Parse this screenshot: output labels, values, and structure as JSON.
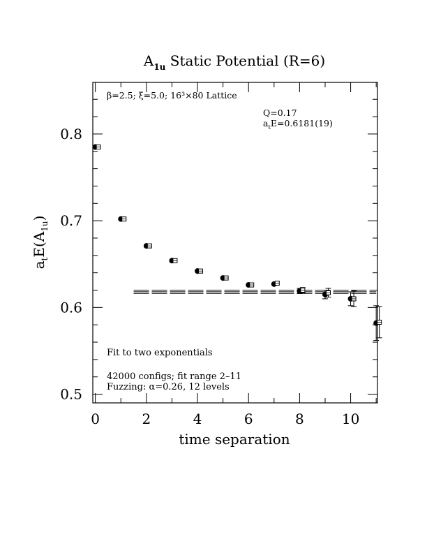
{
  "chart_data": {
    "type": "scatter",
    "title_main": "A",
    "title_sub": "1u",
    "title_rest": " Static Potential (R=6)",
    "xlabel": "time separation",
    "ylabel_main": "a",
    "ylabel_sub1": "t",
    "ylabel_mid": "E(A",
    "ylabel_sub2": "1u",
    "ylabel_end": ")",
    "xlim": [
      -0.1,
      11.05
    ],
    "ylim": [
      0.49,
      0.8595
    ],
    "x_ticks": [
      0,
      2,
      4,
      6,
      8,
      10
    ],
    "x_tick_labels": [
      "0",
      "2",
      "4",
      "6",
      "8",
      "10"
    ],
    "y_ticks": [
      0.5,
      0.6,
      0.7,
      0.8
    ],
    "y_tick_labels": [
      "0.5",
      "0.6",
      "0.7",
      "0.8"
    ],
    "series": [
      {
        "marker": "filled-circle",
        "points": [
          {
            "x": 0,
            "y": 0.785
          },
          {
            "x": 1,
            "y": 0.702
          },
          {
            "x": 2,
            "y": 0.671
          },
          {
            "x": 3,
            "y": 0.654
          },
          {
            "x": 4,
            "y": 0.642
          },
          {
            "x": 5,
            "y": 0.634
          },
          {
            "x": 6,
            "y": 0.626
          },
          {
            "x": 7,
            "y": 0.627
          },
          {
            "x": 8,
            "y": 0.619,
            "err": 0.003
          },
          {
            "x": 9,
            "y": 0.615,
            "err": 0.005
          },
          {
            "x": 10,
            "y": 0.61,
            "err": 0.008
          },
          {
            "x": 11,
            "y": 0.582,
            "err": 0.02
          }
        ]
      },
      {
        "marker": "open-square",
        "points": [
          {
            "x": 0,
            "y": 0.785
          },
          {
            "x": 1,
            "y": 0.702
          },
          {
            "x": 2,
            "y": 0.671
          },
          {
            "x": 3,
            "y": 0.654
          },
          {
            "x": 4,
            "y": 0.642
          },
          {
            "x": 5,
            "y": 0.634
          },
          {
            "x": 6,
            "y": 0.626
          },
          {
            "x": 7,
            "y": 0.628
          },
          {
            "x": 8,
            "y": 0.62,
            "err": 0.003
          },
          {
            "x": 9,
            "y": 0.617,
            "err": 0.005
          },
          {
            "x": 10,
            "y": 0.61,
            "err": 0.009
          },
          {
            "x": 11,
            "y": 0.583,
            "err": 0.018
          }
        ]
      }
    ],
    "fit": {
      "value": 0.6181,
      "error": 0.0019,
      "x_range": [
        1.5,
        11
      ]
    },
    "annotations": {
      "lattice": "β=2.5; ξ=5.0; 16³×80 Lattice",
      "q_value": "Q=0.17",
      "energy_main": "a",
      "energy_sub": "t",
      "energy_rest": "E=0.6181(19)",
      "fit_desc": "Fit to two exponentials",
      "configs": "42000 configs; fit range 2–11",
      "fuzzing": "Fuzzing: α=0.26, 12 levels"
    }
  }
}
